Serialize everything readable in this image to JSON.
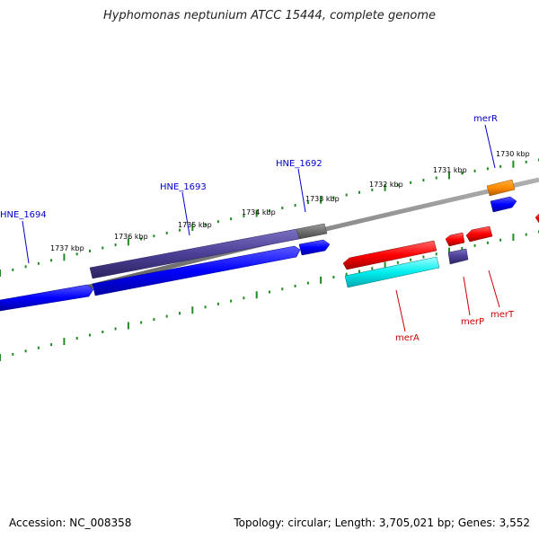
{
  "title": "Hyphomonas neptunium ATCC 15444, complete genome",
  "footer": {
    "accession": "Accession: NC_008358",
    "summary": "Topology: circular; Length: 3,705,021 bp; Genes: 3,552"
  },
  "ruler": [
    {
      "label": "1737 kbp"
    },
    {
      "label": "1736 kbp"
    },
    {
      "label": "1735 kbp"
    },
    {
      "label": "1734 kbp"
    },
    {
      "label": "1733 kbp"
    },
    {
      "label": "1732 kbp"
    },
    {
      "label": "1731 kbp"
    },
    {
      "label": "1730 kbp"
    }
  ],
  "gene_labels": [
    {
      "name": "HNE_1694",
      "color": "#0000cc"
    },
    {
      "name": "HNE_1693",
      "color": "#0000cc"
    },
    {
      "name": "HNE_1692",
      "color": "#0000cc"
    },
    {
      "name": "merR",
      "color": "#0000cc"
    },
    {
      "name": "merA",
      "color": "#cc0000"
    },
    {
      "name": "merP",
      "color": "#cc0000"
    },
    {
      "name": "merT",
      "color": "#cc0000"
    }
  ],
  "colors": {
    "cds_forward": "#0000ff",
    "cds_reverse": "#ff0000",
    "gene_forward": "#4a3f96",
    "gene_reverse": "#00e5ee",
    "pseudo": "#707070",
    "regulator": "#ff8c00",
    "backbone": "#808080",
    "ticks": "#228b22"
  }
}
